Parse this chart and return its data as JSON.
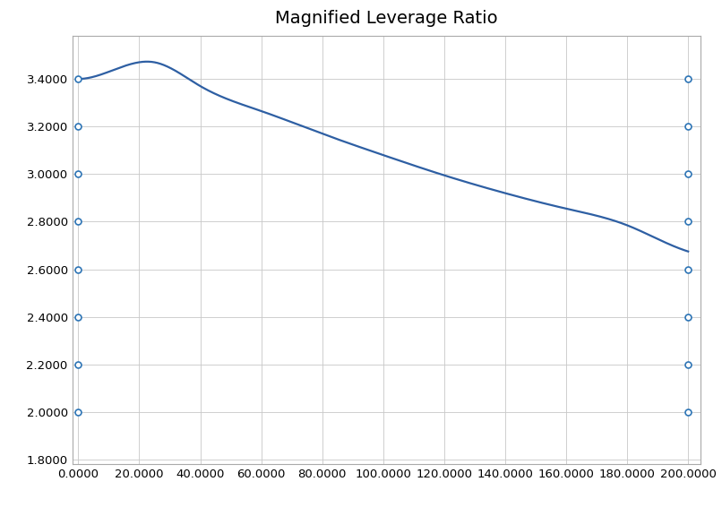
{
  "title": "Magnified Leverage Ratio",
  "title_fontsize": 14,
  "xlim": [
    -2,
    204
  ],
  "ylim": [
    1.78,
    3.58
  ],
  "xticks": [
    0,
    20,
    40,
    60,
    80,
    100,
    120,
    140,
    160,
    180,
    200
  ],
  "yticks": [
    1.8,
    2.0,
    2.2,
    2.4,
    2.6,
    2.8,
    3.0,
    3.2,
    3.4
  ],
  "xtick_labels": [
    "0.0000",
    "20.0000",
    "40.0000",
    "60.0000",
    "80.0000",
    "100.0000",
    "120.0000",
    "140.0000",
    "160.0000",
    "180.0000",
    "200.0000"
  ],
  "ytick_labels": [
    "1.8000",
    "2.0000",
    "2.2000",
    "2.4000",
    "2.6000",
    "2.8000",
    "3.0000",
    "3.2000",
    "3.4000"
  ],
  "line_color": "#2E5FA3",
  "marker_color": "#2E75B6",
  "scatter_left_x": 0,
  "scatter_right_x": 200,
  "scatter_y_values": [
    2.0,
    2.2,
    2.4,
    2.6,
    2.8,
    3.0,
    3.2,
    3.4
  ],
  "background_color": "#FFFFFF",
  "grid_color": "#C8C8C8",
  "tick_fontsize": 9.5,
  "curve_peak_x": 25,
  "curve_peak_y": 3.47,
  "curve_y_end": 2.675,
  "curve_y_at_0": 3.4
}
